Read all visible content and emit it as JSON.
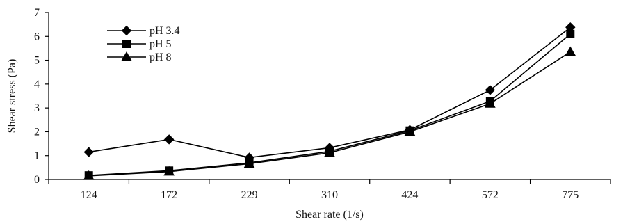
{
  "chart_data": {
    "type": "line",
    "categories": [
      "124",
      "172",
      "229",
      "310",
      "424",
      "572",
      "775"
    ],
    "xlabel": "Shear rate (1/s)",
    "ylabel": "Shear stress (Pa)",
    "ylim": [
      0,
      7
    ],
    "yticks": [
      "0",
      "1",
      "2",
      "3",
      "4",
      "5",
      "6",
      "7"
    ],
    "grid": false,
    "legend_position": "top-left",
    "series": [
      {
        "name": "pH 3.4",
        "marker": "diamond",
        "values": [
          1.15,
          1.68,
          0.92,
          1.33,
          2.08,
          3.75,
          6.38
        ]
      },
      {
        "name": "pH 5",
        "marker": "square",
        "values": [
          0.17,
          0.37,
          0.7,
          1.18,
          2.05,
          3.28,
          6.1
        ]
      },
      {
        "name": "pH 8",
        "marker": "triangle",
        "values": [
          0.15,
          0.33,
          0.66,
          1.12,
          2.0,
          3.18,
          5.35
        ]
      }
    ],
    "colors": {
      "line": "#000000",
      "marker": "#000000"
    }
  }
}
